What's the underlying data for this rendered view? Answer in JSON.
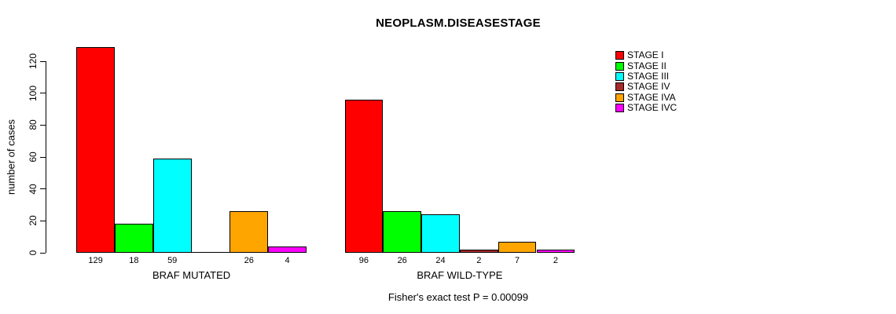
{
  "chart_data": {
    "type": "bar",
    "title": "NEOPLASM.DISEASESTAGE",
    "ylabel": "number of cases",
    "caption": "Fisher's exact test P = 0.00099",
    "ylim": [
      0,
      120
    ],
    "yticks": [
      0,
      20,
      40,
      60,
      80,
      100,
      120
    ],
    "grid": false,
    "legend_position": "top-right",
    "categories": [
      "STAGE I",
      "STAGE II",
      "STAGE III",
      "STAGE IV",
      "STAGE IVA",
      "STAGE IVC"
    ],
    "series_colors": [
      "#ff0000",
      "#00ff00",
      "#00ffff",
      "#a52a2a",
      "#ffa500",
      "#ff00ff"
    ],
    "groups": [
      {
        "label": "BRAF MUTATED",
        "values": [
          129,
          18,
          59,
          0,
          26,
          4
        ],
        "value_labels": [
          "129",
          "18",
          "59",
          "",
          "26",
          "4"
        ]
      },
      {
        "label": "BRAF WILD-TYPE",
        "values": [
          96,
          26,
          24,
          2,
          7,
          2
        ],
        "value_labels": [
          "96",
          "26",
          "24",
          "2",
          "7",
          "2"
        ]
      }
    ],
    "legend": [
      {
        "label": "STAGE I",
        "color": "#ff0000"
      },
      {
        "label": "STAGE II",
        "color": "#00ff00"
      },
      {
        "label": "STAGE III",
        "color": "#00ffff"
      },
      {
        "label": "STAGE IV",
        "color": "#a52a2a"
      },
      {
        "label": "STAGE IVA",
        "color": "#ffa500"
      },
      {
        "label": "STAGE IVC",
        "color": "#ff00ff"
      }
    ],
    "axis_color": "#000000",
    "text_color": "#000000",
    "background_color": "#ffffff"
  }
}
